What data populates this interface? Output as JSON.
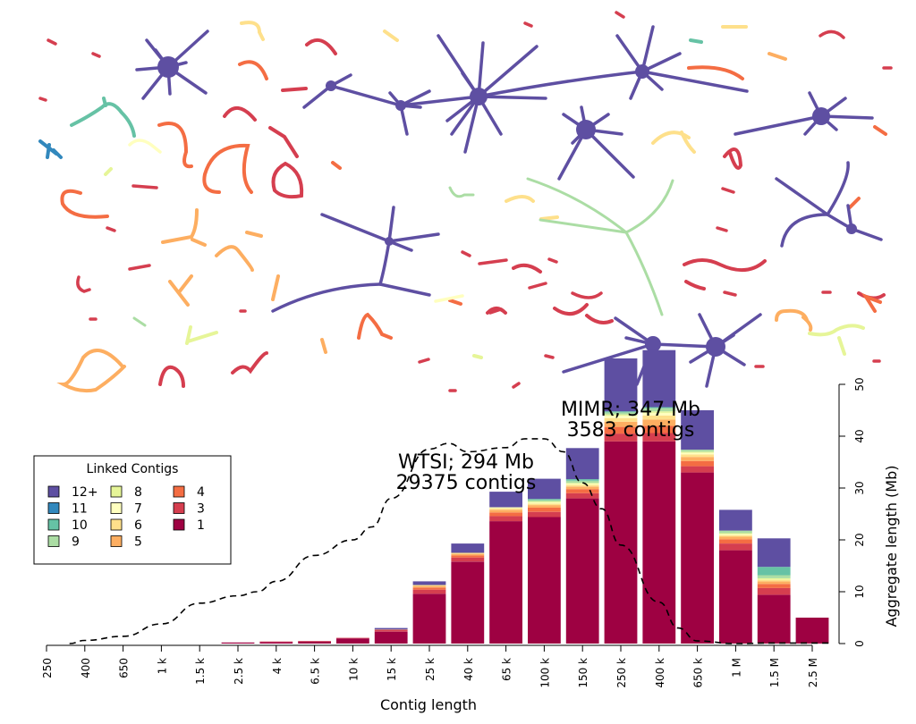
{
  "chart_data": {
    "type": "bar",
    "stacked": true,
    "xlabel": "Contig length",
    "ylabel": "Aggregate length (Mb)",
    "ylim": [
      0,
      55
    ],
    "yticks": [
      0,
      10,
      20,
      30,
      40,
      50
    ],
    "x_tick_labels": [
      "250",
      "400",
      "650",
      "1 k",
      "1.5 k",
      "2.5 k",
      "4 k",
      "6.5 k",
      "10 k",
      "15 k",
      "25 k",
      "40 k",
      "65 k",
      "100 k",
      "150 k",
      "250 k",
      "400 k",
      "650 k",
      "1 M",
      "1.5 M",
      "2.5 M"
    ],
    "x_log": true,
    "legend": {
      "title": "Linked Contigs",
      "placement": "left",
      "entries": [
        {
          "label": "12+",
          "color": "#5E4FA2"
        },
        {
          "label": "11",
          "color": "#3288BD"
        },
        {
          "label": "10",
          "color": "#66C2A5"
        },
        {
          "label": "9",
          "color": "#ABDDA4"
        },
        {
          "label": "8",
          "color": "#E6F598"
        },
        {
          "label": "7",
          "color": "#FFFFBF"
        },
        {
          "label": "6",
          "color": "#FEE08B"
        },
        {
          "label": "5",
          "color": "#FDAE61"
        },
        {
          "label": "4",
          "color": "#F46D43"
        },
        {
          "label": "3",
          "color": "#D53E4F"
        },
        {
          "label": "1",
          "color": "#9E0142"
        }
      ]
    },
    "stack_order": [
      "1",
      "3",
      "4",
      "5",
      "6",
      "7",
      "8",
      "9",
      "10",
      "11",
      "12+"
    ],
    "bars": [
      {
        "bin": 5,
        "segments": {
          "1": 0.2
        }
      },
      {
        "bin": 6,
        "segments": {
          "1": 0.3,
          "3": 0.1
        }
      },
      {
        "bin": 7,
        "segments": {
          "1": 0.4,
          "3": 0.1
        }
      },
      {
        "bin": 8,
        "segments": {
          "1": 1.0,
          "3": 0.1
        }
      },
      {
        "bin": 9,
        "segments": {
          "1": 2.3,
          "3": 0.3,
          "4": 0.1,
          "12+": 0.3
        }
      },
      {
        "bin": 10,
        "segments": {
          "1": 9.6,
          "3": 0.8,
          "4": 0.4,
          "5": 0.3,
          "6": 0.2,
          "12+": 0.7
        }
      },
      {
        "bin": 11,
        "segments": {
          "1": 15.8,
          "3": 0.8,
          "4": 0.4,
          "5": 0.3,
          "6": 0.2,
          "12+": 1.8
        }
      },
      {
        "bin": 12,
        "segments": {
          "1": 23.6,
          "3": 1.0,
          "4": 0.7,
          "5": 0.5,
          "6": 0.3,
          "7": 0.2,
          "12+": 3.0
        }
      },
      {
        "bin": 13,
        "segments": {
          "1": 24.4,
          "3": 1.0,
          "4": 0.8,
          "5": 0.5,
          "6": 0.3,
          "7": 0.2,
          "8": 0.2,
          "9": 0.3,
          "10": 0.2,
          "12+": 3.9
        }
      },
      {
        "bin": 14,
        "segments": {
          "1": 28.0,
          "3": 1.0,
          "4": 0.8,
          "5": 0.5,
          "6": 0.3,
          "7": 0.2,
          "8": 0.2,
          "9": 0.4,
          "10": 0.3,
          "12+": 6.0
        }
      },
      {
        "bin": 15,
        "segments": {
          "1": 39.0,
          "3": 1.5,
          "4": 1.3,
          "5": 1.0,
          "6": 0.7,
          "7": 0.4,
          "8": 0.3,
          "9": 0.4,
          "10": 0.2,
          "12+": 10.2
        }
      },
      {
        "bin": 16,
        "segments": {
          "1": 39.0,
          "3": 1.6,
          "4": 1.4,
          "5": 1.2,
          "6": 0.8,
          "7": 0.5,
          "8": 0.3,
          "9": 0.6,
          "10": 0.2,
          "12+": 11.0
        }
      },
      {
        "bin": 17,
        "segments": {
          "1": 33.0,
          "3": 1.2,
          "4": 1.0,
          "5": 0.8,
          "6": 0.5,
          "7": 0.3,
          "8": 0.2,
          "9": 0.4,
          "12+": 7.6
        }
      },
      {
        "bin": 18,
        "segments": {
          "1": 18.0,
          "3": 1.3,
          "4": 0.8,
          "5": 0.5,
          "6": 0.3,
          "7": 0.2,
          "8": 0.2,
          "9": 0.5,
          "12+": 4.0
        }
      },
      {
        "bin": 19,
        "segments": {
          "1": 9.4,
          "3": 1.3,
          "4": 0.8,
          "5": 0.5,
          "6": 0.3,
          "8": 0.3,
          "9": 0.6,
          "10": 1.6,
          "12+": 5.5
        }
      },
      {
        "bin": 20,
        "segments": {
          "1": 5.0
        }
      }
    ],
    "density_curve": {
      "style": "dashed",
      "points": [
        [
          0.6,
          0
        ],
        [
          1.0,
          0.6
        ],
        [
          2.0,
          1.4
        ],
        [
          3.0,
          3.8
        ],
        [
          4.0,
          7.8
        ],
        [
          5.0,
          9.2
        ],
        [
          5.5,
          10.0
        ],
        [
          6.0,
          12.0
        ],
        [
          7.0,
          17.0
        ],
        [
          8.0,
          20.0
        ],
        [
          8.5,
          22.5
        ],
        [
          9.0,
          28.0
        ],
        [
          10.0,
          37.5
        ],
        [
          10.5,
          38.6
        ],
        [
          11.0,
          37.0
        ],
        [
          12.0,
          37.8
        ],
        [
          12.5,
          39.5
        ],
        [
          13.0,
          39.5
        ],
        [
          13.5,
          37.0
        ],
        [
          14.0,
          31.0
        ],
        [
          14.5,
          26.0
        ],
        [
          15.0,
          19.0
        ],
        [
          16.0,
          8.0
        ],
        [
          16.5,
          3.0
        ],
        [
          17.0,
          0.5
        ],
        [
          18.0,
          0
        ],
        [
          19.0,
          0.1
        ],
        [
          20.0,
          0.1
        ],
        [
          20.5,
          0.1
        ]
      ]
    },
    "annotations": [
      {
        "line1": "WTSI; 294 Mb",
        "line2": "29375 contigs"
      },
      {
        "line1": "MIMR; 347 Mb",
        "line2": "3583 contigs"
      }
    ]
  }
}
